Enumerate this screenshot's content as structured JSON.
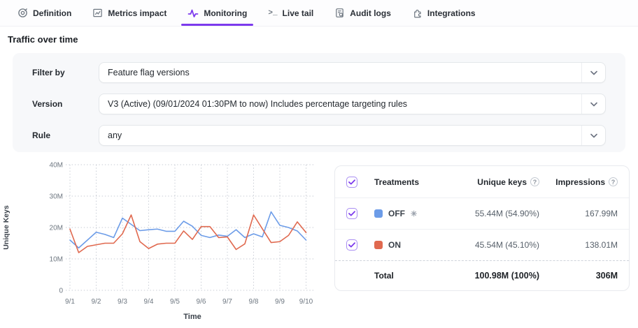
{
  "tabs": [
    {
      "label": "Definition",
      "icon": "target-icon",
      "active": false
    },
    {
      "label": "Metrics impact",
      "icon": "metrics-chart-icon",
      "active": false
    },
    {
      "label": "Monitoring",
      "icon": "pulse-icon",
      "active": true
    },
    {
      "label": "Live tail",
      "icon": "terminal-icon",
      "active": false
    },
    {
      "label": "Audit logs",
      "icon": "document-search-icon",
      "active": false
    },
    {
      "label": "Integrations",
      "icon": "puzzle-icon",
      "active": false
    }
  ],
  "page": {
    "title": "Traffic over time"
  },
  "filters": {
    "filter_by": {
      "label": "Filter by",
      "value": "Feature flag versions"
    },
    "version": {
      "label": "Version",
      "value": "V3 (Active) (09/01/2024 01:30PM to now) Includes percentage targeting rules"
    },
    "rule": {
      "label": "Rule",
      "value": "any"
    }
  },
  "chart_data": {
    "type": "line",
    "xlabel": "Time",
    "ylabel": "Unique Keys",
    "categories": [
      "9/1",
      "9/2",
      "9/3",
      "9/4",
      "9/5",
      "9/6",
      "9/7",
      "9/8",
      "9/9",
      "9/10"
    ],
    "y_ticks": [
      0,
      10,
      20,
      30,
      40
    ],
    "y_tick_labels": [
      "0",
      "10M",
      "20M",
      "30M",
      "40M"
    ],
    "ylim": [
      0,
      40
    ],
    "unit": "millions",
    "points_per_day": 3,
    "grid": "dotted",
    "legend_position": "table-right",
    "series": [
      {
        "name": "OFF",
        "color": "#6c9ce8",
        "values": [
          16,
          13.5,
          16,
          18.5,
          17.8,
          16.8,
          23,
          21,
          19,
          19.3,
          19.5,
          18.8,
          18.8,
          22,
          20.4,
          17.5,
          16.8,
          17.6,
          17.2,
          19.3,
          16.8,
          18,
          17,
          25,
          20.7,
          20,
          18.9,
          16
        ]
      },
      {
        "name": "ON",
        "color": "#e0694f",
        "values": [
          19.5,
          12,
          14,
          14.5,
          15,
          15,
          18,
          24,
          15.5,
          13.3,
          14.7,
          15,
          15,
          18.9,
          16.2,
          20.3,
          20.3,
          16.8,
          17,
          13,
          14.8,
          24,
          19.6,
          15.2,
          15.5,
          17.5,
          21.8,
          18.4
        ]
      }
    ]
  },
  "table": {
    "headers": {
      "treatments": "Treatments",
      "unique_keys": "Unique keys",
      "impressions": "Impressions"
    },
    "rows": [
      {
        "treatment": "OFF",
        "color": "#6c9ce8",
        "default_marker": "✳",
        "unique_keys": "55.44M (54.90%)",
        "impressions": "167.99M",
        "checked": true
      },
      {
        "treatment": "ON",
        "color": "#e0694f",
        "default_marker": "",
        "unique_keys": "45.54M (45.10%)",
        "impressions": "138.01M",
        "checked": true
      }
    ],
    "total": {
      "label": "Total",
      "unique_keys": "100.98M (100%)",
      "impressions": "306M"
    }
  },
  "colors": {
    "accent": "#7c3aed",
    "off_series": "#6c9ce8",
    "on_series": "#e0694f"
  }
}
